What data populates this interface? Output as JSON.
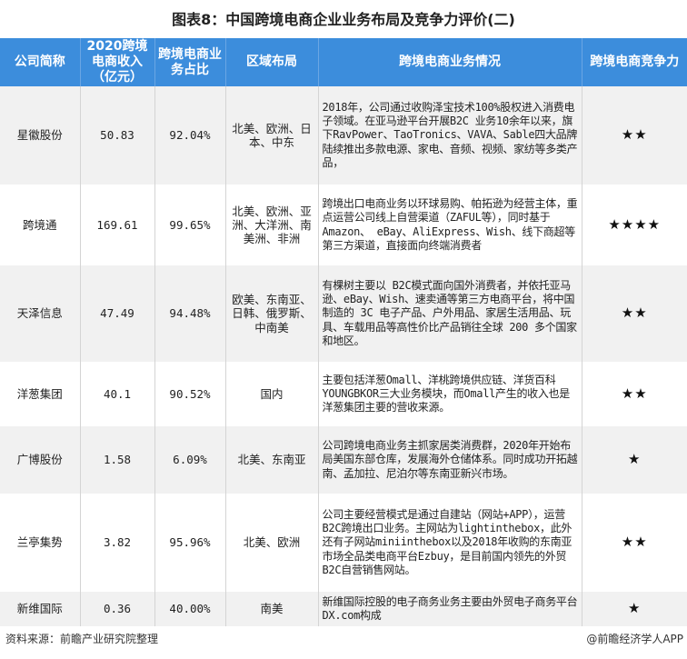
{
  "title": "图表8：中国跨境电商企业业务布局及竞争力评价(二)",
  "headers": [
    "公司简称",
    "2020跨境电商收入（亿元）",
    "跨境电商业务占比",
    "区域布局",
    "跨境电商业务情况",
    "跨境电商竞争力"
  ],
  "rows": [
    {
      "company": "星徽股份",
      "revenue": "50.83",
      "share": "92.04%",
      "region": "北美、欧洲、日本、中东",
      "desc": "2018年，公司通过收购泽宝技术100%股权进入消费电子领域。在亚马逊平台开展B2C 业务10余年以来，旗下RavPower、TaoTronics、VAVA、Sable四大品牌陆续推出多款电源、家电、音频、视频、家纺等多类产品，",
      "stars": "★★",
      "rating": 2
    },
    {
      "company": "跨境通",
      "revenue": "169.61",
      "share": "99.65%",
      "region": "北美、欧洲、亚洲、大洋洲、南美洲、非洲",
      "desc": "跨境出口电商业务以环球易购、帕拓逊为经营主体，重点运营公司线上自营渠道（ZAFUL等），同时基于Amazon、 eBay、AliExpress、Wish、线下商超等第三方渠道，直接面向终端消费者",
      "stars": "★★★★",
      "rating": 4
    },
    {
      "company": "天泽信息",
      "revenue": "47.49",
      "share": "94.48%",
      "region": "欧美、东南亚、日韩、俄罗斯、中南美",
      "desc": "有棵树主要以 B2C模式面向国外消费者，并依托亚马逊、eBay、Wish、速卖通等第三方电商平台，将中国制造的 3C 电子产品、户外用品、家居生活用品、玩具、车载用品等高性价比产品销往全球 200 多个国家和地区。",
      "stars": "★★",
      "rating": 2
    },
    {
      "company": "洋葱集团",
      "revenue": "40.1",
      "share": "90.52%",
      "region": "国内",
      "desc": "主要包括洋葱Omall、洋桃跨境供应链、洋货百科YOUNGBKOR三大业务模块，而Omall产生的收入也是洋葱集团主要的营收来源。",
      "stars": "★★",
      "rating": 2
    },
    {
      "company": "广博股份",
      "revenue": "1.58",
      "share": "6.09%",
      "region": "北美、东南亚",
      "desc": "公司跨境电商业务主抓家居类消费群，2020年开始布局美国东部仓库，发展海外仓储体系。同时成功开拓越南、孟加拉、尼泊尔等东南亚新兴市场。",
      "stars": "★",
      "rating": 1
    },
    {
      "company": "兰亭集势",
      "revenue": "3.82",
      "share": "95.96%",
      "region": "北美、欧洲",
      "desc": "公司主要经营模式是通过自建站（网站+APP），运营B2C跨境出口业务。主网站为lightinthebox，此外还有子网站miniinthebox以及2018年收购的东南亚市场全品类电商平台Ezbuy，是目前国内领先的外贸B2C自营销售网站。",
      "stars": "★★",
      "rating": 2
    },
    {
      "company": "新维国际",
      "revenue": "0.36",
      "share": "40.00%",
      "region": "南美",
      "desc": "新维国际控股的电子商务业务主要由外贸电子商务平台DX.com构成",
      "stars": "★",
      "rating": 1
    }
  ],
  "footer": {
    "source": "资料来源：前瞻产业研究院整理",
    "credit": "@前瞻经济学人APP"
  },
  "colors": {
    "header": "#3c8ddc",
    "stripe": "#f1f1f1"
  }
}
